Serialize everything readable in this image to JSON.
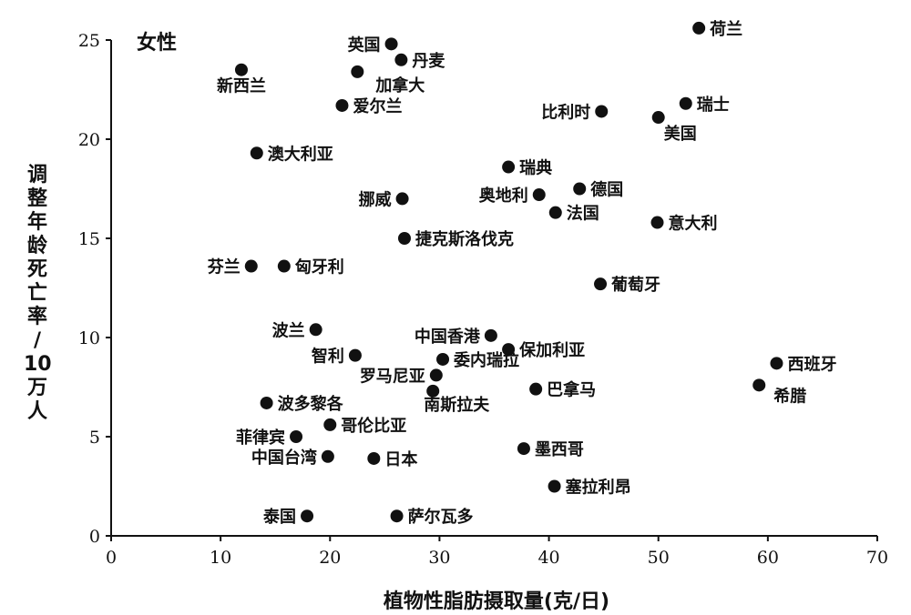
{
  "chart_data": {
    "type": "scatter",
    "title": "女性",
    "xlabel": "植物性脂肪摄取量(克/日)",
    "ylabel": "调整年龄死亡率/10万人",
    "xlim": [
      0,
      70
    ],
    "ylim": [
      0,
      25
    ],
    "xticks": [
      "0",
      "10",
      "20",
      "30",
      "40",
      "50",
      "60",
      "70"
    ],
    "yticks": [
      "0",
      "5",
      "10",
      "15",
      "20",
      "25"
    ],
    "grid": false,
    "points": [
      {
        "name": "英国",
        "x": 25.6,
        "y": 24.8
      },
      {
        "name": "丹麦",
        "x": 26.5,
        "y": 24.0
      },
      {
        "name": "新西兰",
        "x": 11.9,
        "y": 23.5
      },
      {
        "name": "加拿大",
        "x": 22.5,
        "y": 23.4
      },
      {
        "name": "爱尔兰",
        "x": 21.1,
        "y": 21.7
      },
      {
        "name": "荷兰",
        "x": 53.7,
        "y": 25.6
      },
      {
        "name": "瑞士",
        "x": 52.5,
        "y": 21.8
      },
      {
        "name": "比利时",
        "x": 44.8,
        "y": 21.4
      },
      {
        "name": "美国",
        "x": 50.0,
        "y": 21.1
      },
      {
        "name": "澳大利亚",
        "x": 13.3,
        "y": 19.3
      },
      {
        "name": "瑞典",
        "x": 36.3,
        "y": 18.6
      },
      {
        "name": "奥地利",
        "x": 39.1,
        "y": 17.2
      },
      {
        "name": "德国",
        "x": 42.8,
        "y": 17.5
      },
      {
        "name": "挪威",
        "x": 26.6,
        "y": 17.0
      },
      {
        "name": "法国",
        "x": 40.6,
        "y": 16.3
      },
      {
        "name": "意大利",
        "x": 49.9,
        "y": 15.8
      },
      {
        "name": "捷克斯洛伐克",
        "x": 26.8,
        "y": 15.0
      },
      {
        "name": "芬兰",
        "x": 12.8,
        "y": 13.6
      },
      {
        "name": "匈牙利",
        "x": 15.8,
        "y": 13.6
      },
      {
        "name": "葡萄牙",
        "x": 44.7,
        "y": 12.7
      },
      {
        "name": "波兰",
        "x": 18.7,
        "y": 10.4
      },
      {
        "name": "中国香港",
        "x": 34.7,
        "y": 10.1
      },
      {
        "name": "保加利亚",
        "x": 36.3,
        "y": 9.4
      },
      {
        "name": "智利",
        "x": 22.3,
        "y": 9.1
      },
      {
        "name": "西班牙",
        "x": 60.8,
        "y": 8.7
      },
      {
        "name": "委内瑞拉",
        "x": 30.3,
        "y": 8.9
      },
      {
        "name": "罗马尼亚",
        "x": 29.7,
        "y": 8.1
      },
      {
        "name": "希腊",
        "x": 59.2,
        "y": 7.6
      },
      {
        "name": "巴拿马",
        "x": 38.8,
        "y": 7.4
      },
      {
        "name": "南斯拉夫",
        "x": 29.4,
        "y": 7.3
      },
      {
        "name": "波多黎各",
        "x": 14.2,
        "y": 6.7
      },
      {
        "name": "哥伦比亚",
        "x": 20.0,
        "y": 5.6
      },
      {
        "name": "菲律宾",
        "x": 16.9,
        "y": 5.0
      },
      {
        "name": "墨西哥",
        "x": 37.7,
        "y": 4.4
      },
      {
        "name": "中国台湾",
        "x": 19.8,
        "y": 4.0
      },
      {
        "name": "日本",
        "x": 24.0,
        "y": 3.9
      },
      {
        "name": "塞拉利昂",
        "x": 40.5,
        "y": 2.5
      },
      {
        "name": "泰国",
        "x": 17.9,
        "y": 1.0
      },
      {
        "name": "萨尔瓦多",
        "x": 26.1,
        "y": 1.0
      }
    ]
  }
}
